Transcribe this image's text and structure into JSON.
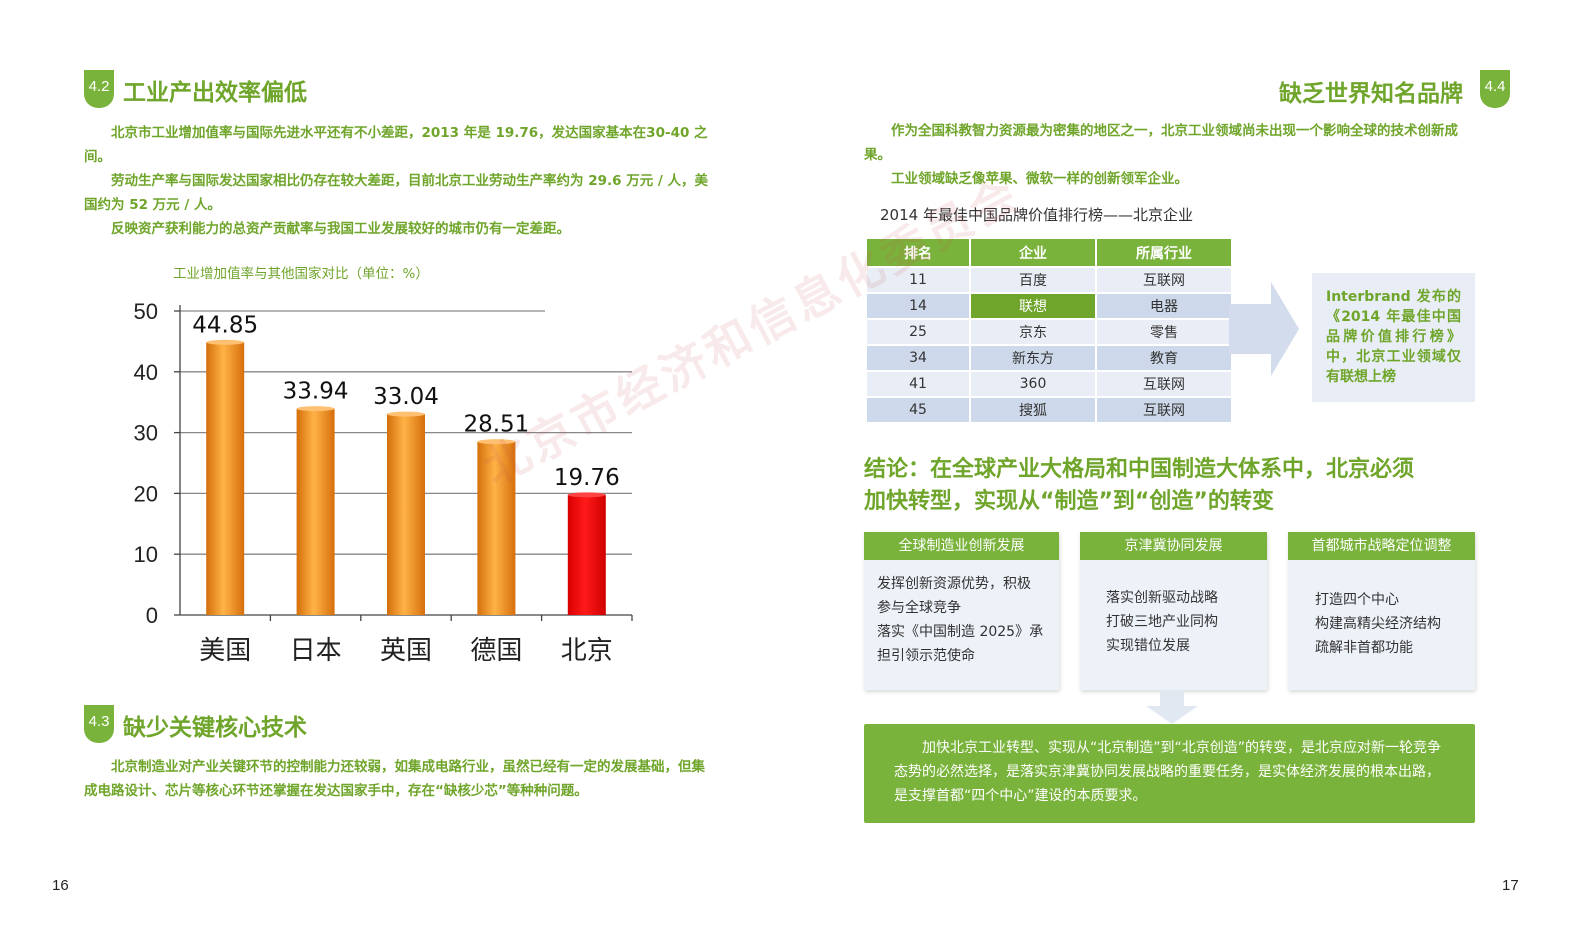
{
  "left": {
    "s42": {
      "num": "4.2",
      "title": "工业产出效率偏低"
    },
    "s42_paras": [
      "北京市工业增加值率与国际先进水平还有不小差距，2013 年是 19.76，发达国家基本在30-40 之间。",
      "劳动生产率与国际发达国家相比仍存在较大差距，目前北京工业劳动生产率约为 29.6 万元 / 人，美国约为 52 万元 / 人。",
      "反映资产获利能力的总资产贡献率与我国工业发展较好的城市仍有一定差距。"
    ],
    "chart_caption": "工业增加值率与其他国家对比（单位：%）",
    "s43": {
      "num": "4.3",
      "title": "缺少关键核心技术"
    },
    "s43_para": "北京制造业对产业关键环节的控制能力还较弱，如集成电路行业，虽然已经有一定的发展基础，但集成电路设计、芯片等核心环节还掌握在发达国家手中，存在“缺核少芯”等种种问题。",
    "page_number": "16"
  },
  "chart_data": {
    "type": "bar",
    "categories": [
      "美国",
      "日本",
      "英国",
      "德国",
      "北京"
    ],
    "values": [
      44.85,
      33.94,
      33.04,
      28.51,
      19.76
    ],
    "value_labels": [
      "44.85",
      "33.94",
      "33.04",
      "28.51",
      "19.76"
    ],
    "ylim": [
      0,
      50
    ],
    "yticks": [
      "0",
      "10",
      "20",
      "30",
      "40",
      "50"
    ],
    "grid": true,
    "colors": {
      "default": "#f39a1e",
      "highlight": "#ee0000"
    },
    "highlight_index": 4
  },
  "right": {
    "s44": {
      "num": "4.4",
      "title": "缺乏世界知名品牌"
    },
    "paras": [
      "作为全国科教智力资源最为密集的地区之一，北京工业领域尚未出现一个影响全球的技术创新成果。",
      "工业领域缺乏像苹果、微软一样的创新领军企业。"
    ],
    "table_title": "2014 年最佳中国品牌价值排行榜——北京企业",
    "table_headers": [
      "排名",
      "企业",
      "所属行业"
    ],
    "table_rows": [
      [
        "11",
        "百度",
        "互联网"
      ],
      [
        "14",
        "联想",
        "电器"
      ],
      [
        "25",
        "京东",
        "零售"
      ],
      [
        "34",
        "新东方",
        "教育"
      ],
      [
        "41",
        "360",
        "互联网"
      ],
      [
        "45",
        "搜狐",
        "互联网"
      ]
    ],
    "callout": "Interbrand 发布的《2014 年最佳中国品牌价值排行榜》中，北京工业领域仅有联想上榜",
    "conclusion_title_1": "结论：在全球产业大格局和中国制造大体系中，北京必须",
    "conclusion_title_2": "加快转型，实现从“制造”到“创造”的转变",
    "boxes": [
      {
        "title": "全球制造业创新发展",
        "lines": [
          "发挥创新资源优势，积极",
          "参与全球竞争",
          "落实《中国制造 2025》承",
          "担引领示范使命"
        ]
      },
      {
        "title": "京津冀协同发展",
        "lines": [
          "落实创新驱动战略",
          "打破三地产业同构",
          "实现错位发展"
        ]
      },
      {
        "title": "首都城市战略定位调整",
        "lines": [
          "打造四个中心",
          "构建高精尖经济结构",
          "疏解非首都功能"
        ]
      }
    ],
    "conclusion_text": "加快北京工业转型、实现从“北京制造”到“北京创造”的转变，是北京应对新一轮竞争态势的必然选择，是落实京津冀协同发展战略的重要任务，是实体经济发展的根本出路，是支撑首都“四个中心”建设的本质要求。",
    "page_number": "17"
  },
  "watermark": "北京市经济和信息化委员会"
}
